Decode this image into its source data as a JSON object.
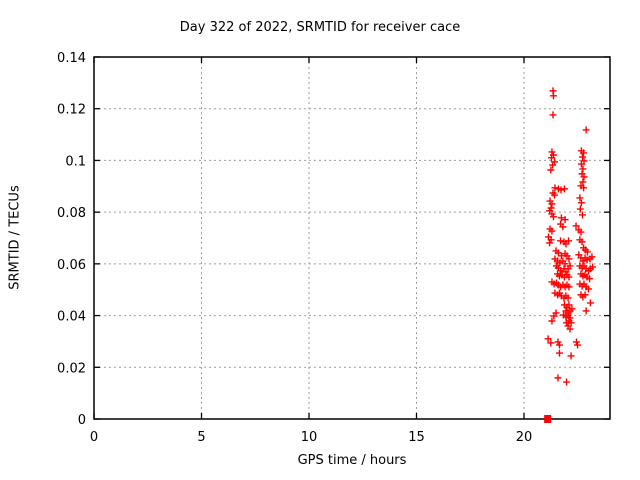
{
  "figure": {
    "background": "#ffffff",
    "axis_color": "#000000",
    "grid_color": "#9e9e9e"
  },
  "chart_data": {
    "type": "scatter",
    "title": "Day 322 of 2022, SRMTID for receiver cace",
    "xlabel": "GPS time / hours",
    "ylabel": "SRMTID / TECUs",
    "xlim": [
      0,
      24
    ],
    "ylim": [
      0,
      0.14
    ],
    "xticks": [
      0,
      5,
      10,
      15,
      20
    ],
    "xtick_labels": [
      "0",
      "5",
      "10",
      "15",
      "20"
    ],
    "yticks": [
      0,
      0.02,
      0.04,
      0.06,
      0.08,
      0.1,
      0.12,
      0.14
    ],
    "ytick_labels": [
      "0",
      "0.02",
      "0.04",
      "0.06",
      "0.08",
      "0.1",
      "0.12",
      "0.14"
    ],
    "grid": "dashed",
    "legend": "none",
    "series": [
      {
        "name": "srmtid-points",
        "marker": "plus",
        "color": "#ff0000",
        "points": [
          [
            21.35,
            0.1269
          ],
          [
            21.37,
            0.125
          ],
          [
            21.35,
            0.1176
          ],
          [
            22.89,
            0.1118
          ],
          [
            21.3,
            0.1033
          ],
          [
            21.37,
            0.1021
          ],
          [
            21.28,
            0.101
          ],
          [
            21.42,
            0.0994
          ],
          [
            21.33,
            0.0982
          ],
          [
            21.25,
            0.0963
          ],
          [
            22.67,
            0.1037
          ],
          [
            22.77,
            0.1029
          ],
          [
            22.72,
            0.1013
          ],
          [
            22.79,
            0.0998
          ],
          [
            22.67,
            0.0986
          ],
          [
            22.74,
            0.0967
          ],
          [
            22.7,
            0.0948
          ],
          [
            22.79,
            0.0936
          ],
          [
            22.74,
            0.0917
          ],
          [
            22.65,
            0.0902
          ],
          [
            22.77,
            0.0894
          ],
          [
            21.44,
            0.0894
          ],
          [
            21.6,
            0.089
          ],
          [
            21.72,
            0.0886
          ],
          [
            21.88,
            0.089
          ],
          [
            21.35,
            0.0874
          ],
          [
            21.42,
            0.0866
          ],
          [
            21.21,
            0.0843
          ],
          [
            21.3,
            0.0832
          ],
          [
            21.26,
            0.0816
          ],
          [
            21.19,
            0.0805
          ],
          [
            21.3,
            0.0793
          ],
          [
            21.37,
            0.0782
          ],
          [
            22.6,
            0.0855
          ],
          [
            22.67,
            0.0836
          ],
          [
            22.62,
            0.0812
          ],
          [
            22.72,
            0.0789
          ],
          [
            21.74,
            0.0778
          ],
          [
            21.91,
            0.0771
          ],
          [
            21.7,
            0.0754
          ],
          [
            21.81,
            0.0743
          ],
          [
            22.42,
            0.0747
          ],
          [
            22.55,
            0.0731
          ],
          [
            22.65,
            0.0723
          ],
          [
            21.21,
            0.0735
          ],
          [
            21.3,
            0.0727
          ],
          [
            21.14,
            0.0704
          ],
          [
            21.26,
            0.0693
          ],
          [
            21.19,
            0.0681
          ],
          [
            21.7,
            0.0689
          ],
          [
            21.86,
            0.0685
          ],
          [
            21.95,
            0.0677
          ],
          [
            22.07,
            0.0689
          ],
          [
            22.6,
            0.0693
          ],
          [
            22.7,
            0.0685
          ],
          [
            22.77,
            0.0662
          ],
          [
            22.86,
            0.0654
          ],
          [
            22.95,
            0.0646
          ],
          [
            21.49,
            0.065
          ],
          [
            21.6,
            0.0642
          ],
          [
            21.74,
            0.0631
          ],
          [
            21.91,
            0.0639
          ],
          [
            22.0,
            0.0631
          ],
          [
            21.44,
            0.0619
          ],
          [
            21.56,
            0.0611
          ],
          [
            21.67,
            0.0604
          ],
          [
            21.81,
            0.0611
          ],
          [
            21.91,
            0.06
          ],
          [
            22.09,
            0.0619
          ],
          [
            21.51,
            0.0592
          ],
          [
            21.6,
            0.0584
          ],
          [
            21.7,
            0.0573
          ],
          [
            21.86,
            0.0581
          ],
          [
            21.95,
            0.0569
          ],
          [
            22.05,
            0.0581
          ],
          [
            22.14,
            0.0592
          ],
          [
            21.56,
            0.0561
          ],
          [
            21.65,
            0.0553
          ],
          [
            21.77,
            0.0557
          ],
          [
            21.88,
            0.0549
          ],
          [
            22.0,
            0.0557
          ],
          [
            22.09,
            0.0549
          ],
          [
            22.55,
            0.0635
          ],
          [
            22.65,
            0.0623
          ],
          [
            22.74,
            0.0611
          ],
          [
            22.84,
            0.0623
          ],
          [
            22.93,
            0.0615
          ],
          [
            23.07,
            0.0619
          ],
          [
            23.16,
            0.0627
          ],
          [
            22.6,
            0.0592
          ],
          [
            22.7,
            0.0584
          ],
          [
            22.79,
            0.0592
          ],
          [
            22.89,
            0.0581
          ],
          [
            23.0,
            0.0573
          ],
          [
            23.09,
            0.0581
          ],
          [
            23.19,
            0.0588
          ],
          [
            22.65,
            0.0561
          ],
          [
            22.74,
            0.0553
          ],
          [
            22.84,
            0.0557
          ],
          [
            22.93,
            0.0549
          ],
          [
            23.05,
            0.0542
          ],
          [
            21.3,
            0.053
          ],
          [
            21.4,
            0.0522
          ],
          [
            21.51,
            0.0526
          ],
          [
            21.6,
            0.0518
          ],
          [
            21.7,
            0.0511
          ],
          [
            21.81,
            0.0518
          ],
          [
            21.91,
            0.0511
          ],
          [
            22.0,
            0.0518
          ],
          [
            22.09,
            0.0511
          ],
          [
            21.44,
            0.0487
          ],
          [
            21.56,
            0.048
          ],
          [
            21.65,
            0.0487
          ],
          [
            21.74,
            0.0476
          ],
          [
            21.86,
            0.0468
          ],
          [
            21.95,
            0.0476
          ],
          [
            22.05,
            0.0468
          ],
          [
            22.6,
            0.0522
          ],
          [
            22.7,
            0.0514
          ],
          [
            22.79,
            0.0522
          ],
          [
            22.89,
            0.0511
          ],
          [
            23.0,
            0.0503
          ],
          [
            22.65,
            0.048
          ],
          [
            22.74,
            0.0472
          ],
          [
            22.84,
            0.048
          ],
          [
            23.09,
            0.0449
          ],
          [
            21.88,
            0.0441
          ],
          [
            22.0,
            0.0433
          ],
          [
            22.09,
            0.0441
          ],
          [
            21.95,
            0.0418
          ],
          [
            22.05,
            0.041
          ],
          [
            22.14,
            0.0418
          ],
          [
            22.23,
            0.0426
          ],
          [
            21.84,
            0.0402
          ],
          [
            21.95,
            0.0395
          ],
          [
            22.05,
            0.0402
          ],
          [
            22.14,
            0.0391
          ],
          [
            22.89,
            0.0418
          ],
          [
            21.98,
            0.0372
          ],
          [
            22.09,
            0.0379
          ],
          [
            22.19,
            0.0372
          ],
          [
            22.05,
            0.036
          ],
          [
            22.14,
            0.0348
          ],
          [
            21.49,
            0.041
          ],
          [
            21.39,
            0.0398
          ],
          [
            21.3,
            0.0379
          ],
          [
            21.12,
            0.031
          ],
          [
            21.25,
            0.0294
          ],
          [
            21.58,
            0.0298
          ],
          [
            21.65,
            0.0286
          ],
          [
            22.44,
            0.0298
          ],
          [
            22.49,
            0.0286
          ],
          [
            21.65,
            0.0255
          ],
          [
            22.19,
            0.0244
          ],
          [
            21.58,
            0.0159
          ],
          [
            21.98,
            0.0143
          ]
        ]
      },
      {
        "name": "zero-line-marker",
        "marker": "filled-square",
        "color": "#ff0000",
        "points": [
          [
            21.1,
            0
          ]
        ]
      }
    ]
  }
}
